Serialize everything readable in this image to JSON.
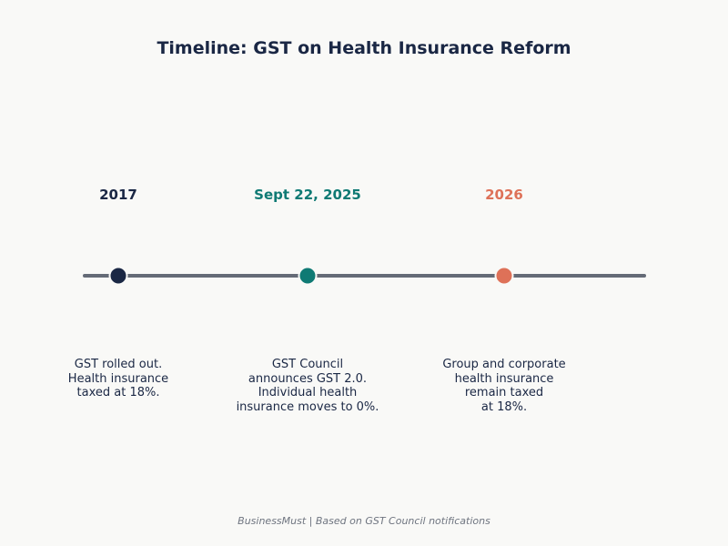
{
  "title": "Timeline: GST on Health Insurance Reform",
  "source": "BusinessMust | Based on GST Council notifications",
  "colors": {
    "line": "#656b77",
    "navy": "#1a2744",
    "teal": "#0f7a74",
    "coral": "#de7158"
  },
  "events": [
    {
      "date": "2017",
      "color": "#1a2744",
      "description": [
        "GST rolled out.",
        "Health insurance",
        "taxed at 18%."
      ]
    },
    {
      "date": "Sept 22, 2025",
      "color": "#0f7a74",
      "description": [
        "GST Council",
        "announces GST 2.0.",
        "Individual health",
        "insurance moves to 0%."
      ]
    },
    {
      "date": "2026",
      "color": "#de7158",
      "description": [
        "Group and corporate",
        "health insurance",
        "remain taxed",
        "at 18%."
      ]
    }
  ]
}
